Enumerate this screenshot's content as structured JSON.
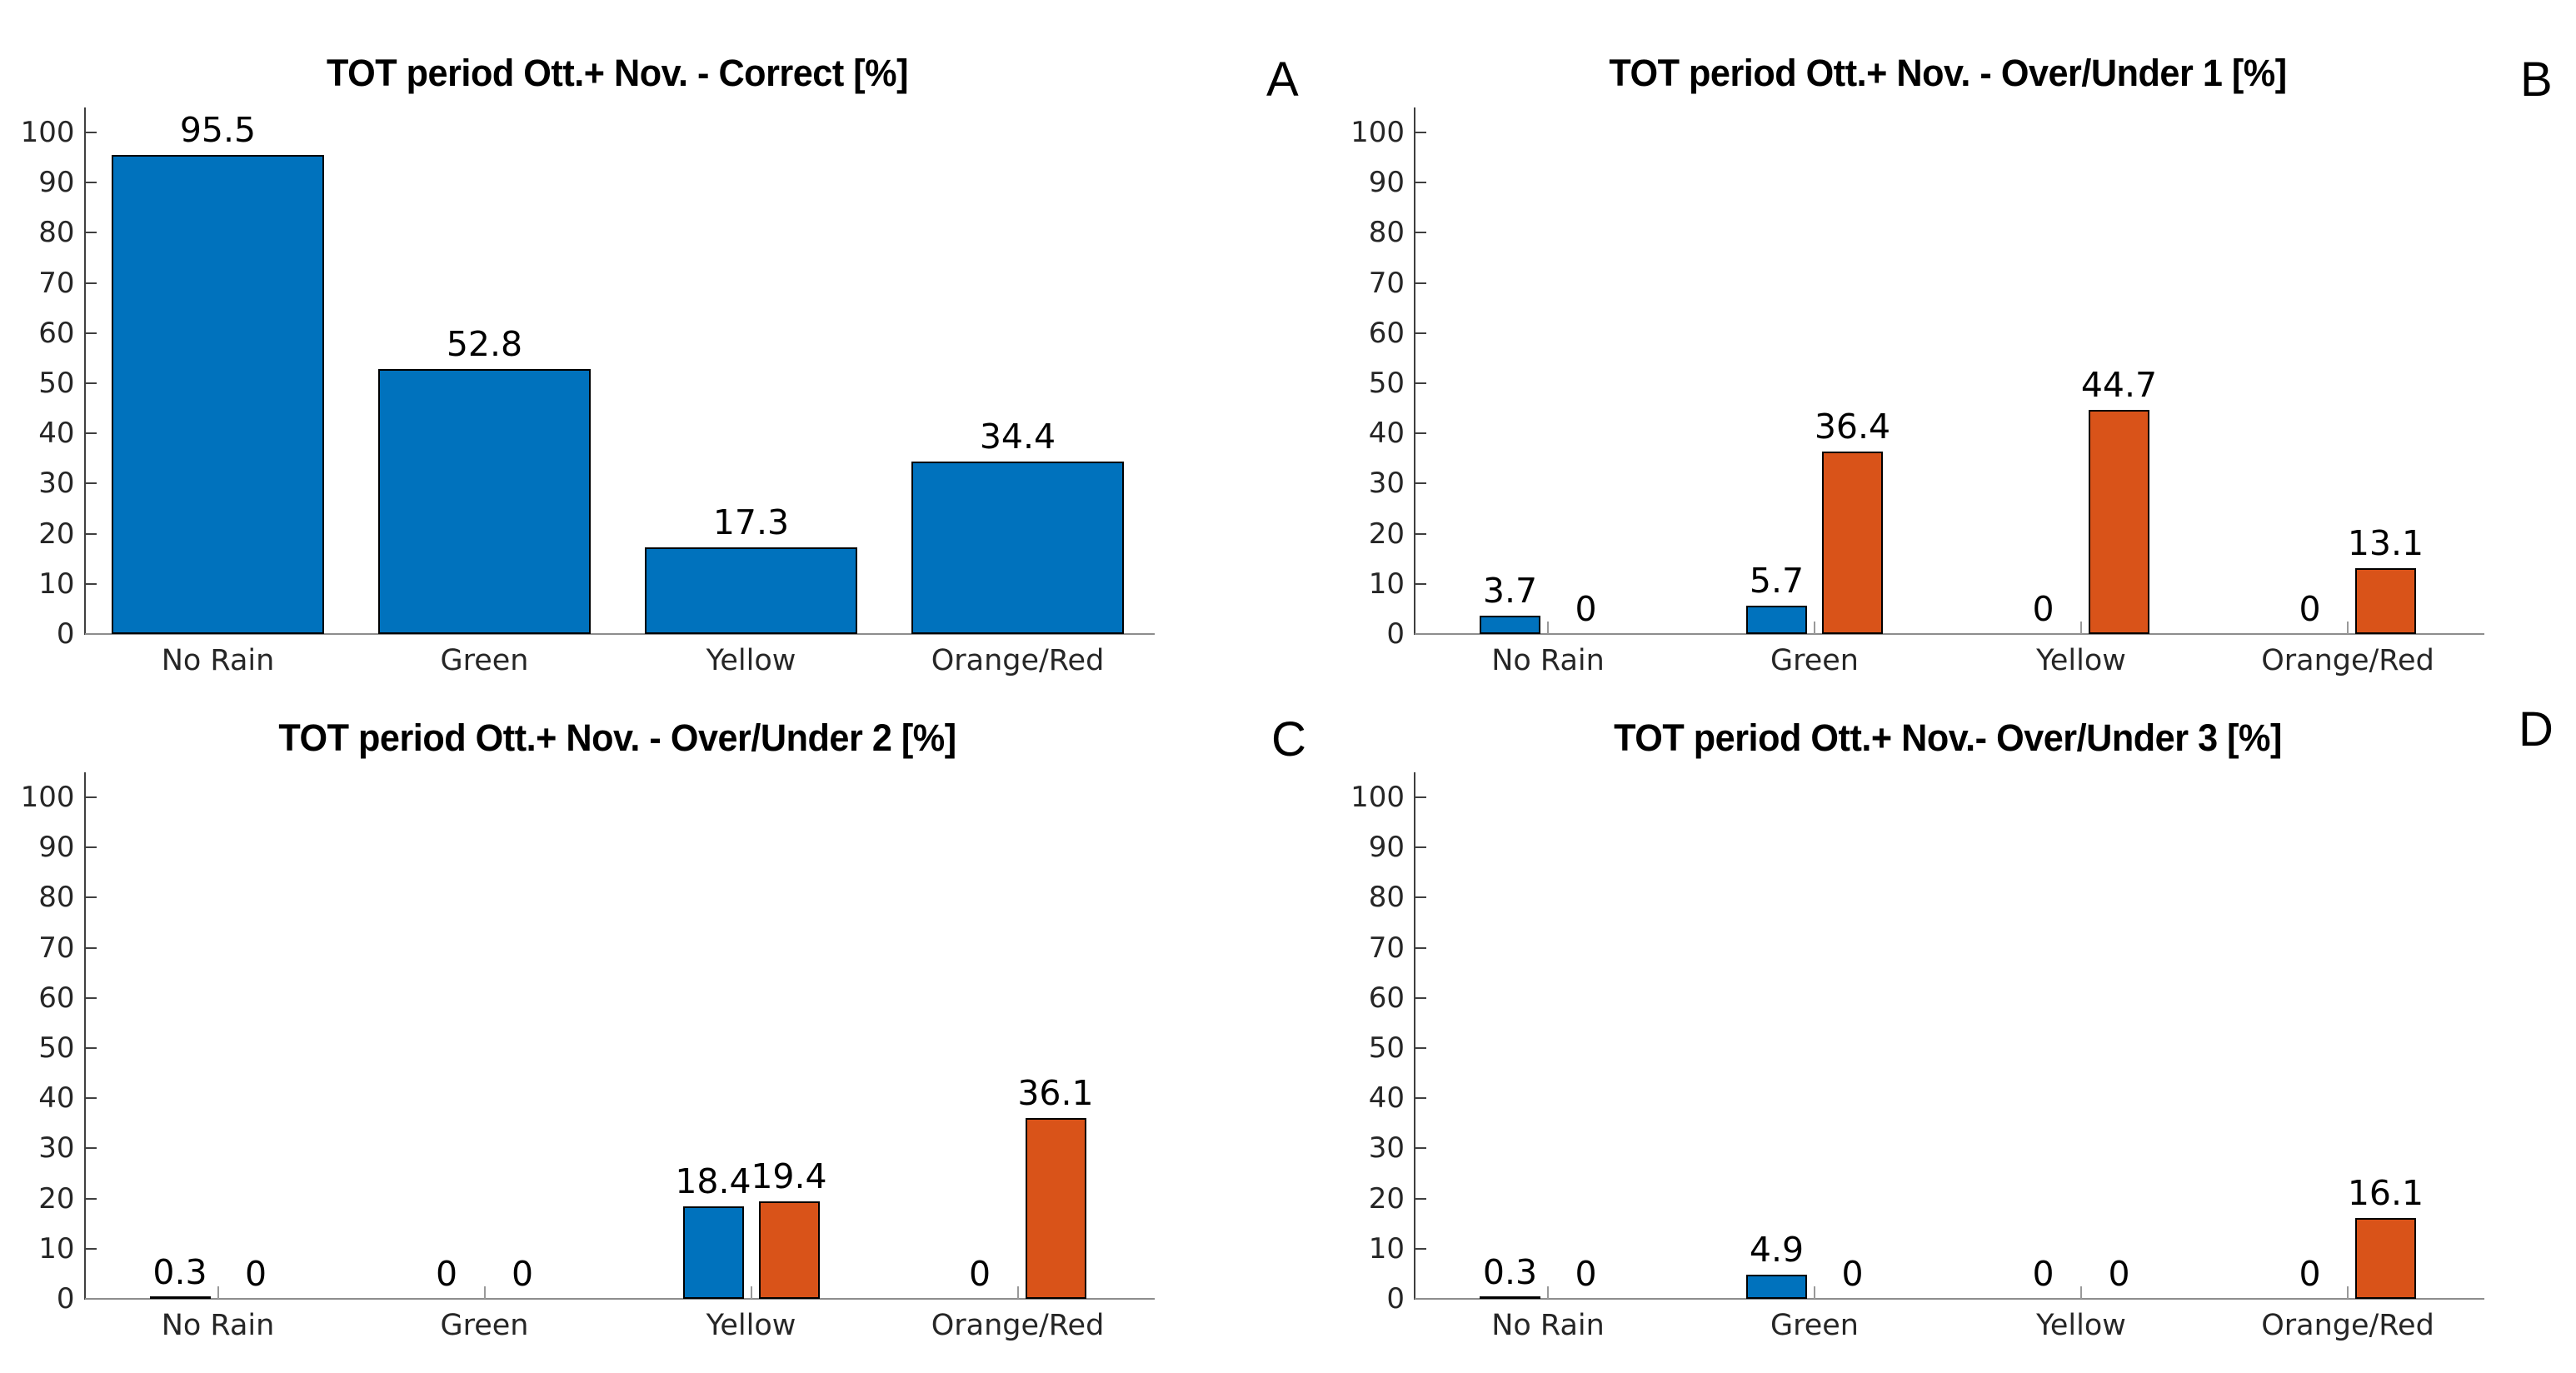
{
  "figure": {
    "background": "#ffffff",
    "series_colors": {
      "blue": "#0072BD",
      "orange": "#D95319"
    },
    "bar_edge_color": "#000000",
    "axis": {
      "categories": [
        "No Rain",
        "Green",
        "Yellow",
        "Orange/Red"
      ],
      "y_ticks": [
        0,
        10,
        20,
        30,
        40,
        50,
        60,
        70,
        80,
        90,
        100
      ],
      "ylim": [
        0,
        105
      ],
      "grid": "off",
      "legend": "none"
    }
  },
  "chart_data": [
    {
      "panel_label": "A",
      "type": "bar",
      "title": "TOT period Ott.+ Nov. - Correct [%]",
      "categories": [
        "No Rain",
        "Green",
        "Yellow",
        "Orange/Red"
      ],
      "xlabel": "",
      "ylabel": "",
      "ylim": [
        0,
        105
      ],
      "yticks": [
        0,
        10,
        20,
        30,
        40,
        50,
        60,
        70,
        80,
        90,
        100
      ],
      "series": [
        {
          "name": "blue",
          "color": "#0072BD",
          "values": [
            95.5,
            52.8,
            17.3,
            34.4
          ]
        }
      ]
    },
    {
      "panel_label": "B",
      "type": "bar",
      "title": "TOT period Ott.+ Nov. - Over/Under 1 [%]",
      "categories": [
        "No Rain",
        "Green",
        "Yellow",
        "Orange/Red"
      ],
      "xlabel": "",
      "ylabel": "",
      "ylim": [
        0,
        105
      ],
      "yticks": [
        0,
        10,
        20,
        30,
        40,
        50,
        60,
        70,
        80,
        90,
        100
      ],
      "series": [
        {
          "name": "blue",
          "color": "#0072BD",
          "values": [
            3.7,
            5.7,
            0,
            0
          ]
        },
        {
          "name": "orange",
          "color": "#D95319",
          "values": [
            0,
            36.4,
            44.7,
            13.1
          ]
        }
      ]
    },
    {
      "panel_label": "C",
      "type": "bar",
      "title": "TOT period Ott.+ Nov. - Over/Under 2 [%]",
      "categories": [
        "No Rain",
        "Green",
        "Yellow",
        "Orange/Red"
      ],
      "xlabel": "",
      "ylabel": "",
      "ylim": [
        0,
        105
      ],
      "yticks": [
        0,
        10,
        20,
        30,
        40,
        50,
        60,
        70,
        80,
        90,
        100
      ],
      "series": [
        {
          "name": "blue",
          "color": "#0072BD",
          "values": [
            0.3,
            0,
            18.4,
            0
          ]
        },
        {
          "name": "orange",
          "color": "#D95319",
          "values": [
            0,
            0,
            19.4,
            36.1
          ]
        }
      ]
    },
    {
      "panel_label": "D",
      "type": "bar",
      "title": "TOT period Ott.+ Nov.- Over/Under 3 [%]",
      "categories": [
        "No Rain",
        "Green",
        "Yellow",
        "Orange/Red"
      ],
      "xlabel": "",
      "ylabel": "",
      "ylim": [
        0,
        105
      ],
      "yticks": [
        0,
        10,
        20,
        30,
        40,
        50,
        60,
        70,
        80,
        90,
        100
      ],
      "series": [
        {
          "name": "blue",
          "color": "#0072BD",
          "values": [
            0.3,
            4.9,
            0,
            0
          ]
        },
        {
          "name": "orange",
          "color": "#D95319",
          "values": [
            0,
            0,
            0,
            16.1
          ]
        }
      ]
    }
  ]
}
